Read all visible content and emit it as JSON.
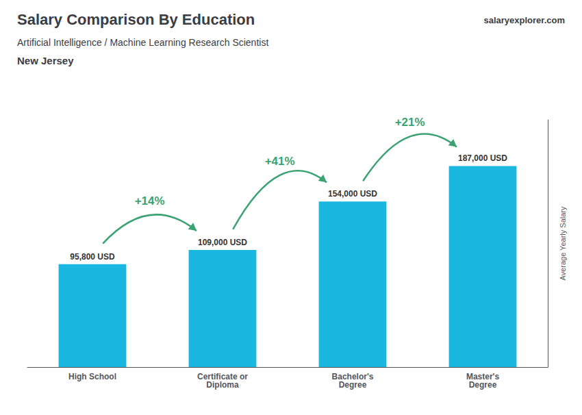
{
  "chart_data": {
    "type": "bar",
    "title": "Salary Comparison By Education",
    "subtitle": [
      "Artificial Intelligence / Machine Learning Research Scientist",
      "New Jersey"
    ],
    "ylabel": "Average Yearly Salary",
    "categories": [
      "High School",
      "Certificate or\nDiploma",
      "Bachelor's\nDegree",
      "Master's\nDegree"
    ],
    "values": [
      95800,
      109000,
      154000,
      187000
    ],
    "value_labels": [
      "95,800 USD",
      "109,000 USD",
      "154,000 USD",
      "187,000 USD"
    ],
    "data_labels": true,
    "color": "#1ab8e0",
    "ylim": [
      0,
      230000
    ],
    "grid": false,
    "tick_labels": "x",
    "annotations": [
      {
        "text": "salaryexplorer.com"
      },
      {
        "text": "+14%",
        "from": "High School",
        "to": "Certificate or\nDiploma"
      },
      {
        "text": "+41%",
        "from": "Certificate or\nDiploma",
        "to": "Bachelor's\nDegree"
      },
      {
        "text": "+21%",
        "from": "Bachelor's\nDegree",
        "to": "Master's\nDegree"
      }
    ]
  }
}
